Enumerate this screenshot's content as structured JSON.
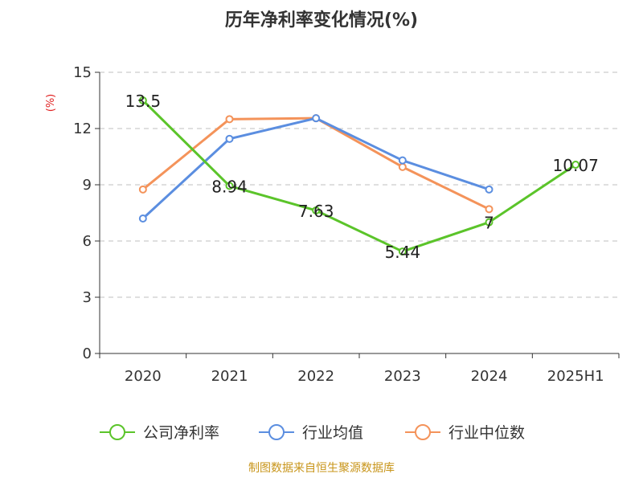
{
  "source_text": "制图数据来自恒生聚源数据库",
  "source_color": "#c8951a",
  "unit_color": "#e02020",
  "chart_data": {
    "type": "line",
    "title": "历年净利率变化情况(%)",
    "ylabel": "(%)",
    "xlabel": "",
    "categories": [
      "2020",
      "2021",
      "2022",
      "2023",
      "2024",
      "2025H1"
    ],
    "ylim": [
      0,
      15
    ],
    "yticks": [
      0,
      3,
      6,
      9,
      12,
      15
    ],
    "grid": true,
    "legend_position": "bottom-center",
    "series": [
      {
        "name": "公司净利率",
        "color": "#5bc42a",
        "values": [
          13.5,
          8.94,
          7.63,
          5.44,
          7,
          10.07
        ],
        "labels": [
          "13.5",
          "8.94",
          "7.63",
          "5.44",
          "7",
          "10.07"
        ]
      },
      {
        "name": "行业均值",
        "color": "#5b8ee0",
        "values": [
          7.2,
          11.45,
          12.55,
          10.3,
          8.75,
          null
        ]
      },
      {
        "name": "行业中位数",
        "color": "#f4935a",
        "values": [
          8.75,
          12.5,
          12.55,
          9.95,
          7.7,
          null
        ]
      }
    ]
  }
}
